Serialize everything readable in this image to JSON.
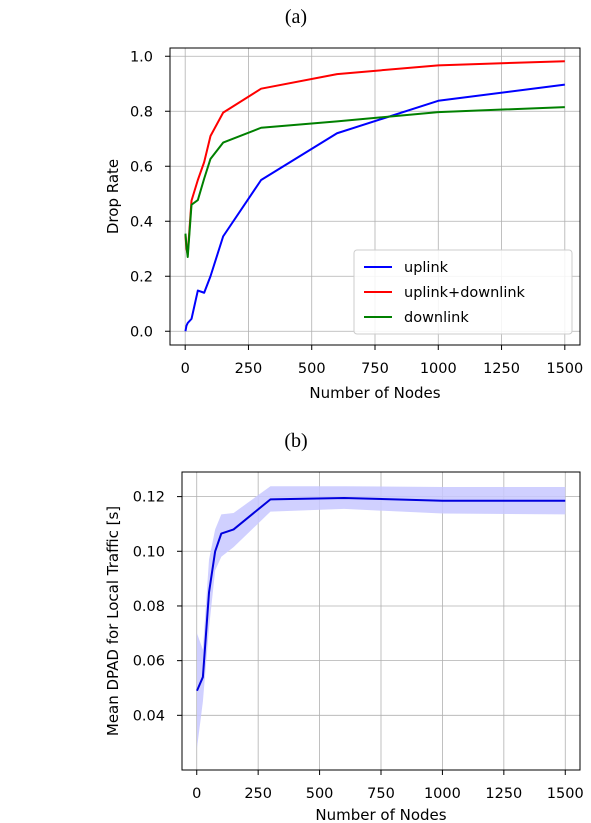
{
  "chart_data": [
    {
      "panel": "(a)",
      "type": "line",
      "xlabel": "Number of Nodes",
      "ylabel": "Drop Rate",
      "xlim": [
        -60,
        1560
      ],
      "ylim": [
        -0.05,
        1.03
      ],
      "xticks": [
        0,
        250,
        500,
        750,
        1000,
        1250,
        1500
      ],
      "yticks": [
        0.0,
        0.2,
        0.4,
        0.6,
        0.8,
        1.0
      ],
      "ytick_labels": [
        "0.0",
        "0.2",
        "0.4",
        "0.6",
        "0.8",
        "1.0"
      ],
      "grid": true,
      "legend_position": "lower right",
      "series": [
        {
          "name": "uplink",
          "color": "#0000ff",
          "x": [
            1,
            5,
            10,
            25,
            50,
            75,
            100,
            150,
            300,
            600,
            1000,
            1500
          ],
          "y": [
            0.0,
            0.02,
            0.03,
            0.045,
            0.148,
            0.14,
            0.2,
            0.345,
            0.55,
            0.72,
            0.838,
            0.897
          ]
        },
        {
          "name": "uplink+downlink",
          "color": "#ff0000",
          "x": [
            1,
            5,
            10,
            25,
            50,
            75,
            100,
            150,
            300,
            600,
            1000,
            1500
          ],
          "y": [
            0.35,
            0.3,
            0.28,
            0.475,
            0.55,
            0.615,
            0.71,
            0.795,
            0.882,
            0.935,
            0.967,
            0.982
          ]
        },
        {
          "name": "downlink",
          "color": "#008000",
          "x": [
            1,
            5,
            10,
            25,
            50,
            75,
            100,
            150,
            300,
            600,
            1000,
            1500
          ],
          "y": [
            0.355,
            0.31,
            0.27,
            0.46,
            0.477,
            0.555,
            0.627,
            0.686,
            0.74,
            0.763,
            0.797,
            0.815
          ]
        }
      ]
    },
    {
      "panel": "(b)",
      "type": "line",
      "xlabel": "Number of Nodes",
      "ylabel": "Mean DPAD for Local Traffic [s]",
      "xlim": [
        -60,
        1560
      ],
      "ylim": [
        0.02,
        0.129
      ],
      "xticks": [
        0,
        250,
        500,
        750,
        1000,
        1250,
        1500
      ],
      "yticks": [
        0.04,
        0.06,
        0.08,
        0.1,
        0.12
      ],
      "ytick_labels": [
        "0.04",
        "0.06",
        "0.08",
        "0.10",
        "0.12"
      ],
      "grid": true,
      "series": [
        {
          "name": "",
          "color": "#0000dd",
          "band_color": "#c8c8ff",
          "x": [
            1,
            25,
            50,
            75,
            100,
            150,
            300,
            600,
            1000,
            1500
          ],
          "y": [
            0.049,
            0.054,
            0.085,
            0.1,
            0.1065,
            0.108,
            0.119,
            0.1195,
            0.1185,
            0.1185
          ],
          "y_low": [
            0.028,
            0.045,
            0.072,
            0.093,
            0.098,
            0.1015,
            0.1145,
            0.1155,
            0.1138,
            0.1135
          ],
          "y_high": [
            0.07,
            0.064,
            0.097,
            0.108,
            0.1135,
            0.114,
            0.1238,
            0.1238,
            0.1235,
            0.1235
          ]
        }
      ]
    }
  ]
}
